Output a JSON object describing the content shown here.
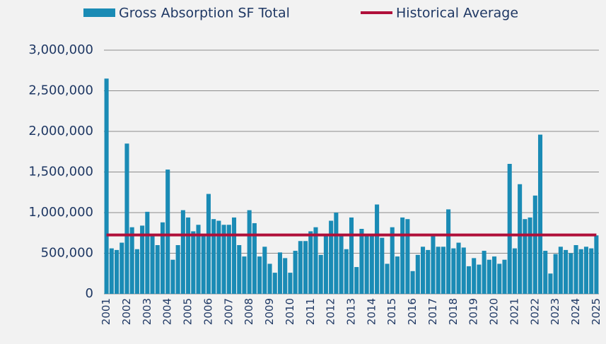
{
  "chart_data": {
    "type": "bar",
    "categories": [
      "2001",
      null,
      null,
      null,
      "2002",
      null,
      null,
      null,
      "2003",
      null,
      null,
      null,
      "2004",
      null,
      null,
      null,
      "2005",
      null,
      null,
      null,
      "2006",
      null,
      null,
      null,
      "2007",
      null,
      null,
      null,
      "2008",
      null,
      null,
      null,
      "2009",
      null,
      null,
      null,
      "2010",
      null,
      null,
      null,
      "2011",
      null,
      null,
      null,
      "2012",
      null,
      null,
      null,
      "2013",
      null,
      null,
      null,
      "2014",
      null,
      null,
      null,
      "2015",
      null,
      null,
      null,
      "2016",
      null,
      null,
      null,
      "2017",
      null,
      null,
      null,
      "2018",
      null,
      null,
      null,
      "2019",
      null,
      null,
      null,
      "2020",
      null,
      null,
      null,
      "2021",
      null,
      null,
      null,
      "2022",
      null,
      null,
      null,
      "2023",
      null,
      null,
      null,
      "2024",
      null,
      null,
      null,
      "2025"
    ],
    "series": [
      {
        "name": "Gross Absorption SF Total",
        "color": "#1a8bb5",
        "values": [
          2650000,
          560000,
          540000,
          630000,
          1850000,
          820000,
          550000,
          840000,
          1010000,
          720000,
          600000,
          880000,
          1530000,
          420000,
          600000,
          1030000,
          940000,
          770000,
          850000,
          720000,
          1230000,
          920000,
          900000,
          850000,
          850000,
          940000,
          600000,
          460000,
          1030000,
          870000,
          460000,
          580000,
          370000,
          260000,
          510000,
          440000,
          260000,
          530000,
          650000,
          650000,
          770000,
          820000,
          480000,
          720000,
          900000,
          1000000,
          720000,
          550000,
          940000,
          330000,
          800000,
          720000,
          720000,
          1100000,
          690000,
          370000,
          820000,
          460000,
          940000,
          920000,
          280000,
          480000,
          580000,
          540000,
          720000,
          580000,
          580000,
          1040000,
          560000,
          630000,
          570000,
          340000,
          440000,
          360000,
          530000,
          420000,
          460000,
          370000,
          420000,
          1600000,
          560000,
          1350000,
          920000,
          940000,
          1210000,
          1960000,
          530000,
          250000,
          490000,
          580000,
          540000,
          500000,
          600000,
          550000,
          580000,
          560000,
          720000
        ]
      },
      {
        "name": "Historical Average",
        "type": "line",
        "color": "#b0103a",
        "values": [
          725000,
          725000,
          725000,
          725000,
          725000,
          725000,
          725000,
          725000,
          725000,
          725000,
          725000,
          725000,
          725000,
          725000,
          725000,
          725000,
          725000,
          725000,
          725000,
          725000,
          725000,
          725000,
          725000,
          725000,
          725000,
          725000,
          725000,
          725000,
          725000,
          725000,
          725000,
          725000,
          725000,
          725000,
          725000,
          725000,
          725000,
          725000,
          725000,
          725000,
          725000,
          725000,
          725000,
          725000,
          725000,
          725000,
          725000,
          725000,
          725000,
          725000,
          725000,
          725000,
          725000,
          725000,
          725000,
          725000,
          725000,
          725000,
          725000,
          725000,
          725000,
          725000,
          725000,
          725000,
          725000,
          725000,
          725000,
          725000,
          725000,
          725000,
          725000,
          725000,
          725000,
          725000,
          725000,
          725000,
          725000,
          725000,
          725000,
          725000,
          725000,
          725000,
          725000,
          725000,
          725000,
          725000,
          725000,
          725000,
          725000,
          725000,
          725000,
          725000,
          725000,
          725000,
          725000,
          725000,
          725000
        ]
      }
    ],
    "ylim": [
      0,
      3000000
    ],
    "yticks": [
      0,
      {
        "value": 500000,
        "label": "500,000"
      },
      {
        "value": 1000000,
        "label": "1,000,000"
      },
      {
        "value": 1500000,
        "label": "1,500,000"
      },
      {
        "value": 2000000,
        "label": "2,000,000"
      },
      {
        "value": 2500000,
        "label": "2,500,000"
      },
      {
        "value": 3000000,
        "label": "3,000,000"
      }
    ],
    "grid": true
  }
}
